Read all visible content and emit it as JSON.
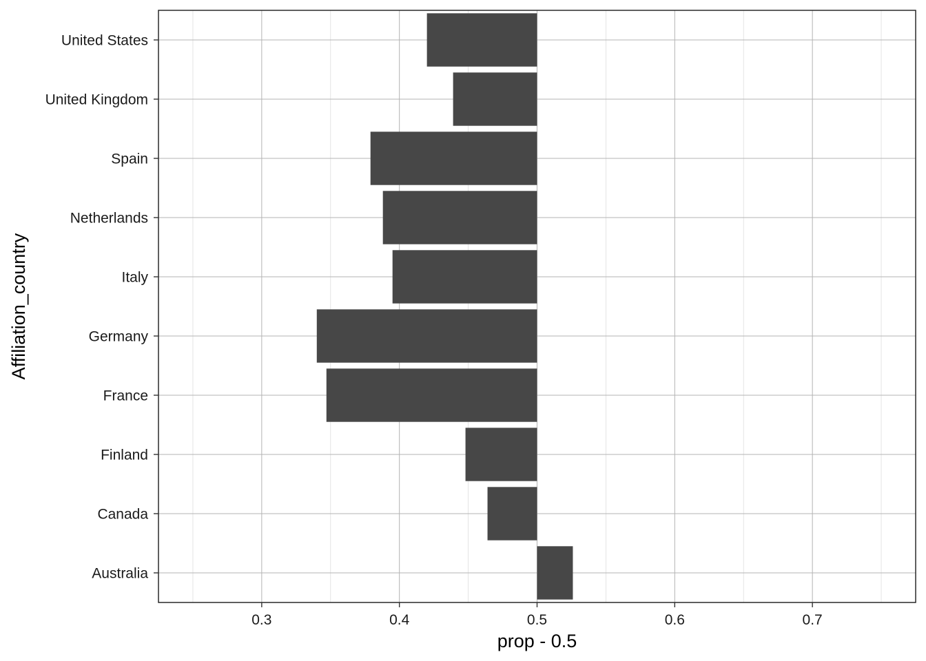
{
  "chart_data": {
    "type": "bar",
    "orientation": "horizontal",
    "title": "",
    "xlabel": "prop - 0.5",
    "ylabel": "Affiliation_country",
    "baseline": 0.5,
    "xlim": [
      0.225,
      0.775
    ],
    "xticks": [
      0.3,
      0.4,
      0.5,
      0.6,
      0.7
    ],
    "xtick_labels": [
      "0.3",
      "0.4",
      "0.5",
      "0.6",
      "0.7"
    ],
    "categories": [
      "United States",
      "United Kingdom",
      "Spain",
      "Netherlands",
      "Italy",
      "Germany",
      "France",
      "Finland",
      "Canada",
      "Australia"
    ],
    "values": [
      0.42,
      0.439,
      0.379,
      0.388,
      0.395,
      0.34,
      0.347,
      0.448,
      0.464,
      0.526
    ],
    "grid": true,
    "bar_color": "#474747",
    "grid_color": "#b3b3b3"
  }
}
